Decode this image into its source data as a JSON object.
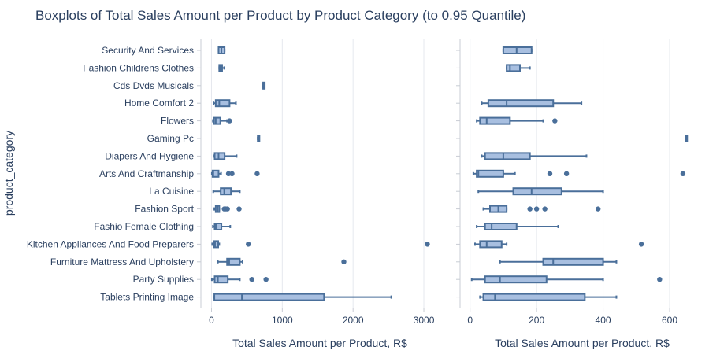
{
  "chart_data": {
    "type": "boxplot",
    "title": "Boxplots of Total Sales Amount per Product by Product Category (to 0.95 Quantile)",
    "ylabel": "product_category",
    "colors": {
      "box_fill": "#a8bfe0",
      "box_line": "#4a6f9a",
      "grid": "#e5e8ee",
      "axis": "#c8ccd4"
    },
    "categories": [
      "Security And Services",
      "Fashion Childrens Clothes",
      "Cds Dvds Musicals",
      "Home Comfort 2",
      "Flowers",
      "Gaming Pc",
      "Diapers And Hygiene",
      "Arts And Craftmanship",
      "La Cuisine",
      "Fashion Sport",
      "Fashio Female Clothing",
      "Kitchen Appliances And Food Preparers",
      "Furniture Mattress And Upholstery",
      "Party Supplies",
      "Tablets Printing Image"
    ],
    "panels": [
      {
        "name": "all",
        "xlabel": "Total Sales Amount per Product, R$",
        "xlim": [
          -150,
          3200
        ],
        "xticks": [
          0,
          1000,
          2000,
          3000
        ],
        "boxes": [
          {
            "min": 100,
            "q1": 100,
            "median": 140,
            "q3": 185,
            "max": 185,
            "outliers": []
          },
          {
            "min": 110,
            "q1": 110,
            "median": 120,
            "q3": 150,
            "max": 180,
            "outliers": []
          },
          {
            "min": 730,
            "q1": 730,
            "median": 730,
            "q3": 730,
            "max": 730,
            "outliers": []
          },
          {
            "min": 30,
            "q1": 60,
            "median": 110,
            "q3": 255,
            "max": 345,
            "outliers": []
          },
          {
            "min": 20,
            "q1": 35,
            "median": 60,
            "q3": 125,
            "max": 220,
            "outliers": [
              255
            ]
          },
          {
            "min": 655,
            "q1": 655,
            "median": 655,
            "q3": 655,
            "max": 655,
            "outliers": []
          },
          {
            "min": 40,
            "q1": 45,
            "median": 100,
            "q3": 185,
            "max": 355,
            "outliers": []
          },
          {
            "min": 5,
            "q1": 15,
            "median": 25,
            "q3": 100,
            "max": 135,
            "outliers": [
              240,
              290,
              645
            ]
          },
          {
            "min": 25,
            "q1": 130,
            "median": 180,
            "q3": 275,
            "max": 400,
            "outliers": []
          },
          {
            "min": 40,
            "q1": 60,
            "median": 85,
            "q3": 110,
            "max": 110,
            "outliers": [
              180,
              200,
              225,
              390
            ]
          },
          {
            "min": 20,
            "q1": 45,
            "median": 65,
            "q3": 140,
            "max": 265,
            "outliers": []
          },
          {
            "min": 10,
            "q1": 30,
            "median": 50,
            "q3": 95,
            "max": 110,
            "outliers": [
              520,
              3050
            ]
          },
          {
            "min": 90,
            "q1": 220,
            "median": 250,
            "q3": 400,
            "max": 440,
            "outliers": [
              1870
            ]
          },
          {
            "min": 5,
            "q1": 45,
            "median": 90,
            "q3": 230,
            "max": 400,
            "outliers": [
              570,
              770
            ]
          },
          {
            "min": 30,
            "q1": 40,
            "median": 430,
            "q3": 1590,
            "max": 2540,
            "outliers": []
          }
        ]
      },
      {
        "name": "to-0.95-quantile",
        "xlabel": "Total Sales Amount per Product, R$",
        "xlim": [
          -30,
          690
        ],
        "xticks": [
          0,
          200,
          400,
          600
        ],
        "boxes": [
          {
            "min": 100,
            "q1": 100,
            "median": 140,
            "q3": 185,
            "max": 185,
            "outliers": []
          },
          {
            "min": 110,
            "q1": 110,
            "median": 120,
            "q3": 150,
            "max": 180,
            "outliers": []
          },
          {
            "min": null,
            "q1": null,
            "median": null,
            "q3": null,
            "max": null,
            "outliers": []
          },
          {
            "min": 35,
            "q1": 55,
            "median": 110,
            "q3": 250,
            "max": 335,
            "outliers": []
          },
          {
            "min": 20,
            "q1": 30,
            "median": 50,
            "q3": 120,
            "max": 220,
            "outliers": [
              255
            ]
          },
          {
            "min": 648,
            "q1": 648,
            "median": 648,
            "q3": 648,
            "max": 648,
            "outliers": []
          },
          {
            "min": 35,
            "q1": 45,
            "median": 100,
            "q3": 180,
            "max": 350,
            "outliers": []
          },
          {
            "min": 10,
            "q1": 20,
            "median": 25,
            "q3": 100,
            "max": 135,
            "outliers": [
              240,
              290,
              640
            ]
          },
          {
            "min": 25,
            "q1": 130,
            "median": 185,
            "q3": 275,
            "max": 400,
            "outliers": []
          },
          {
            "min": 40,
            "q1": 60,
            "median": 85,
            "q3": 110,
            "max": 110,
            "outliers": [
              180,
              200,
              225,
              385
            ]
          },
          {
            "min": 20,
            "q1": 45,
            "median": 65,
            "q3": 140,
            "max": 265,
            "outliers": []
          },
          {
            "min": 15,
            "q1": 30,
            "median": 50,
            "q3": 95,
            "max": 110,
            "outliers": [
              515
            ]
          },
          {
            "min": 90,
            "q1": 220,
            "median": 250,
            "q3": 400,
            "max": 440,
            "outliers": []
          },
          {
            "min": 5,
            "q1": 45,
            "median": 90,
            "q3": 230,
            "max": 400,
            "outliers": [
              570
            ]
          },
          {
            "min": 30,
            "q1": 40,
            "median": 75,
            "q3": 345,
            "max": 440,
            "outliers": []
          }
        ]
      }
    ]
  }
}
